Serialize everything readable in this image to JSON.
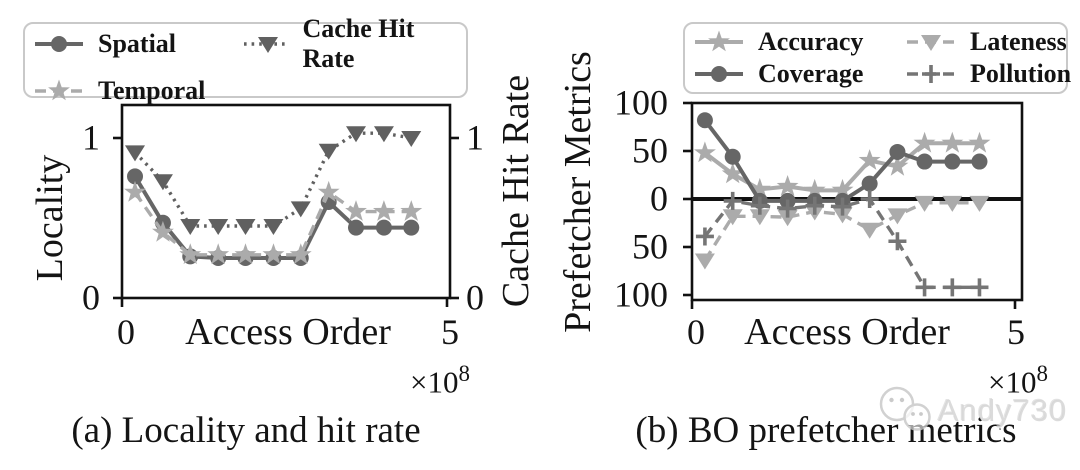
{
  "watermark": {
    "text": "Andy730",
    "icon": "wechat-icon"
  },
  "chart_data": [
    {
      "type": "line",
      "caption": "(a) Locality and hit rate",
      "xlabel": "Access Order",
      "ylabel_left": "Locality",
      "ylabel_right": "Cache Hit Rate",
      "x_unit_multiplier": {
        "base": "×10",
        "exp": "8"
      },
      "xlim": [
        0,
        5.05
      ],
      "ylim": [
        0,
        1.21
      ],
      "grid": false,
      "legend_position": "above",
      "x": [
        0.2,
        0.63,
        1.05,
        1.48,
        1.9,
        2.33,
        2.75,
        3.18,
        3.6,
        4.03,
        4.45
      ],
      "xticks": {
        "values": [
          0,
          5
        ],
        "labels": [
          "0",
          "5"
        ]
      },
      "yticks_left": {
        "values": [
          1,
          0
        ],
        "labels": [
          "1",
          "0"
        ]
      },
      "yticks_right": {
        "values": [
          1,
          0
        ],
        "labels": [
          "1",
          "0"
        ]
      },
      "series": [
        {
          "name": "Spatial",
          "marker": "circle",
          "line": "solid",
          "color": "#666666",
          "values": [
            0.76,
            0.47,
            0.26,
            0.25,
            0.25,
            0.25,
            0.25,
            0.6,
            0.44,
            0.44,
            0.44
          ]
        },
        {
          "name": "Temporal",
          "marker": "star",
          "line": "dashed",
          "color": "#ababab",
          "values": [
            0.66,
            0.41,
            0.27,
            0.27,
            0.27,
            0.27,
            0.27,
            0.66,
            0.54,
            0.54,
            0.54
          ]
        },
        {
          "name": "Cache Hit Rate",
          "marker": "triangle-down",
          "line": "dotted",
          "color": "#606060",
          "values": [
            0.91,
            0.73,
            0.45,
            0.45,
            0.45,
            0.45,
            0.56,
            0.92,
            1.03,
            1.03,
            1.0
          ]
        }
      ]
    },
    {
      "type": "line",
      "caption": "(b) BO prefetcher metrics",
      "xlabel": "Access Order",
      "ylabel_left": "Prefetcher Metrics",
      "x_unit_multiplier": {
        "base": "×10",
        "exp": "8"
      },
      "xlim": [
        0,
        5.1
      ],
      "ylim": [
        -105,
        100
      ],
      "zero_line": true,
      "grid": false,
      "legend_position": "above",
      "x": [
        0.2,
        0.63,
        1.05,
        1.48,
        1.9,
        2.33,
        2.75,
        3.18,
        3.6,
        4.03,
        4.45
      ],
      "xticks": {
        "values": [
          0,
          5
        ],
        "labels": [
          "0",
          "5"
        ]
      },
      "yticks_left": {
        "values": [
          100,
          50,
          0,
          -50,
          -100
        ],
        "labels": [
          "100",
          "50",
          "0",
          "50",
          "100"
        ]
      },
      "series": [
        {
          "name": "Accuracy",
          "marker": "star",
          "line": "solid",
          "color": "#ababab",
          "values": [
            48,
            26,
            10,
            13,
            9,
            9,
            40,
            34,
            58,
            58,
            58
          ]
        },
        {
          "name": "Coverage",
          "marker": "circle",
          "line": "solid",
          "color": "#666666",
          "values": [
            82,
            44,
            -2,
            -2,
            -2,
            -2,
            16,
            49,
            39,
            39,
            39
          ]
        },
        {
          "name": "Lateness",
          "marker": "triangle-down",
          "line": "dashed",
          "color": "#ababab",
          "values": [
            -64,
            -18,
            -18,
            -19,
            -13,
            -16,
            -32,
            -17,
            -4,
            -4,
            -4
          ]
        },
        {
          "name": "Pollution",
          "marker": "plus",
          "line": "dashed",
          "color": "#757575",
          "values": [
            -39,
            -2,
            -7,
            -10,
            -7,
            -8,
            0,
            -44,
            -92,
            -92,
            -92
          ]
        }
      ]
    }
  ]
}
